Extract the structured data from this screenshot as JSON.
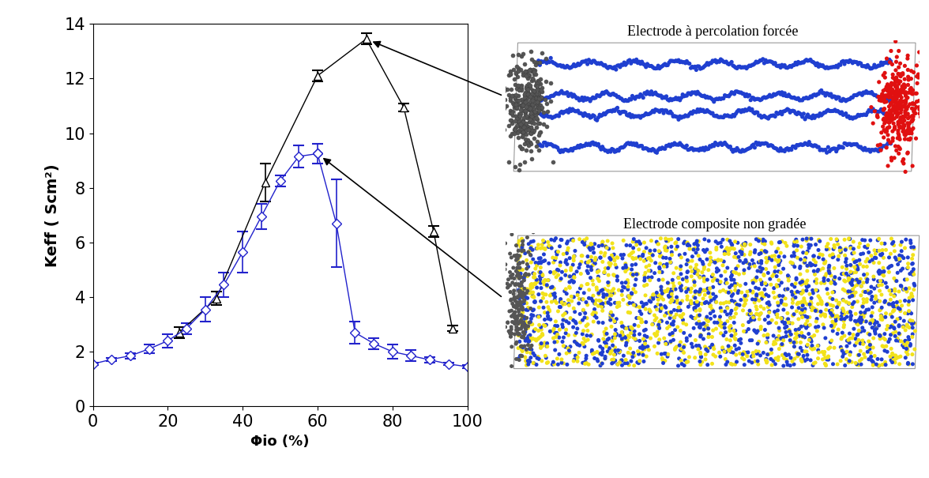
{
  "chart_data": {
    "type": "line",
    "x_label": "Φio (%)",
    "y_label": "Keff ( Scm²)",
    "xlim": [
      0,
      100
    ],
    "xticks": [
      0,
      20,
      40,
      60,
      80,
      100
    ],
    "ylim": [
      0,
      14
    ],
    "yticks": [
      0,
      2,
      4,
      6,
      8,
      10,
      12,
      14
    ],
    "grid": false,
    "series": [
      {
        "color": "#000000",
        "marker": "triangle",
        "line_style": "solid",
        "x": [
          23,
          33,
          46,
          60,
          73,
          83,
          91,
          96
        ],
        "values": [
          2.7,
          3.95,
          8.2,
          12.1,
          13.45,
          10.95,
          6.4,
          2.85
        ],
        "errors": [
          0.2,
          0.25,
          0.7,
          0.2,
          0.2,
          0.15,
          0.2,
          0.1
        ]
      },
      {
        "color": "#2222cc",
        "marker": "diamond",
        "line_style": "solid",
        "x": [
          0,
          5,
          10,
          15,
          20,
          25,
          30,
          35,
          40,
          45,
          50,
          55,
          60,
          65,
          70,
          75,
          80,
          85,
          90,
          95,
          100
        ],
        "values": [
          1.55,
          1.72,
          1.85,
          2.1,
          2.4,
          2.85,
          3.55,
          4.45,
          5.65,
          6.95,
          8.25,
          9.15,
          9.25,
          6.7,
          2.7,
          2.3,
          2.0,
          1.85,
          1.7,
          1.55,
          1.45
        ],
        "errors": [
          0.05,
          0.05,
          0.1,
          0.15,
          0.25,
          0.2,
          0.45,
          0.45,
          0.75,
          0.45,
          0.2,
          0.4,
          0.35,
          1.6,
          0.4,
          0.2,
          0.25,
          0.2,
          0.1,
          0.05,
          0.05
        ]
      }
    ],
    "annotations": [
      {
        "text": "Electrode à percolation forcée",
        "x": 73,
        "y": 13.45
      },
      {
        "text": "Electrode composite non gradée",
        "x": 60,
        "y": 9.25
      }
    ]
  }
}
